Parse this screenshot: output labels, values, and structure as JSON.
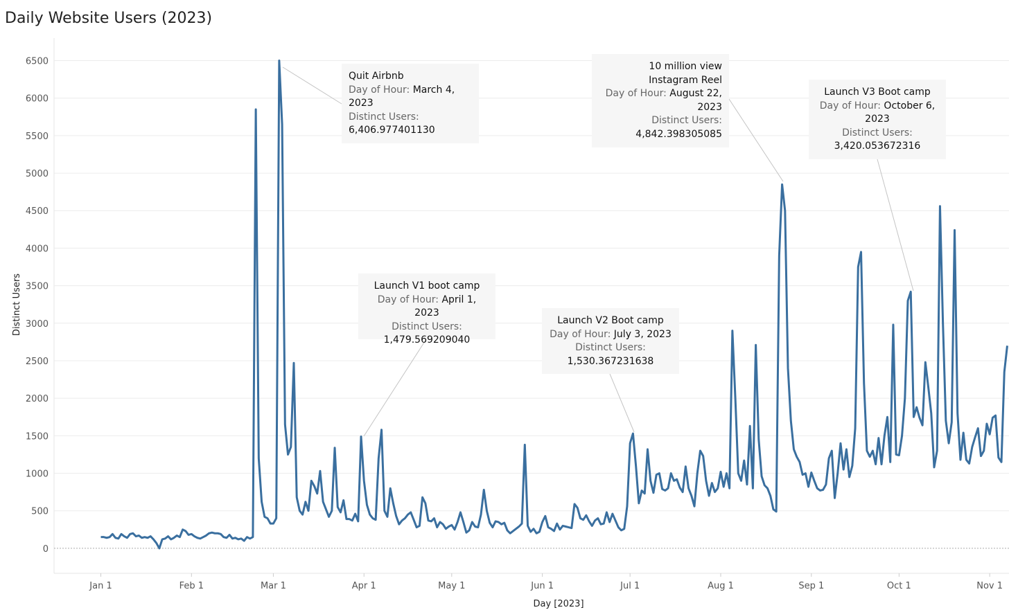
{
  "chart_data": {
    "type": "line",
    "title": "Daily Website Users (2023)",
    "x_label": "Day [2023]",
    "y_label": "Distinct Users",
    "xlim": [
      -16,
      310.6
    ],
    "ylim": [
      -333,
      6800
    ],
    "xticks": [
      {
        "value": 0,
        "label": "Jan 1"
      },
      {
        "value": 31,
        "label": "Feb 1"
      },
      {
        "value": 59,
        "label": "Mar 1"
      },
      {
        "value": 90,
        "label": "Apr 1"
      },
      {
        "value": 120,
        "label": "May 1"
      },
      {
        "value": 151,
        "label": "Jun 1"
      },
      {
        "value": 181,
        "label": "Jul 1"
      },
      {
        "value": 212,
        "label": "Aug 1"
      },
      {
        "value": 243,
        "label": "Sep 1"
      },
      {
        "value": 273,
        "label": "Oct 1"
      },
      {
        "value": 304,
        "label": "Nov 1"
      }
    ],
    "yticks": [
      0,
      500,
      1000,
      1500,
      2000,
      2500,
      3000,
      3500,
      4000,
      4500,
      5000,
      5500,
      6000,
      6500
    ],
    "grid": true,
    "x": [
      0,
      1,
      2,
      3,
      4,
      5,
      6,
      7,
      8,
      9,
      10,
      11,
      12,
      13,
      14,
      15,
      16,
      17,
      18,
      19,
      20,
      21,
      22,
      23,
      24,
      25,
      26,
      27,
      28,
      29,
      30,
      31,
      32,
      33,
      34,
      35,
      36,
      37,
      38,
      39,
      40,
      41,
      42,
      43,
      44,
      45,
      46,
      47,
      48,
      49,
      50,
      51,
      52,
      53,
      54,
      55,
      56,
      57,
      58,
      59,
      60,
      61,
      62,
      63,
      64,
      65,
      66,
      67,
      68,
      69,
      70,
      71,
      72,
      73,
      74,
      75,
      76,
      77,
      78,
      79,
      80,
      81,
      82,
      83,
      84,
      85,
      86,
      87,
      88,
      89,
      90,
      91,
      92,
      93,
      94,
      95,
      96,
      97,
      98,
      99,
      100,
      101,
      102,
      103,
      104,
      105,
      106,
      107,
      108,
      109,
      110,
      111,
      112,
      113,
      114,
      115,
      116,
      117,
      118,
      119,
      120,
      121,
      122,
      123,
      124,
      125,
      126,
      127,
      128,
      129,
      130,
      131,
      132,
      133,
      134,
      135,
      136,
      137,
      138,
      139,
      140,
      141,
      142,
      143,
      144,
      145,
      146,
      147,
      148,
      149,
      150,
      151,
      152,
      153,
      154,
      155,
      156,
      157,
      158,
      159,
      160,
      161,
      162,
      163,
      164,
      165,
      166,
      167,
      168,
      169,
      170,
      171,
      172,
      173,
      174,
      175,
      176,
      177,
      178,
      179,
      180,
      181,
      182,
      183,
      184,
      185,
      186,
      187,
      188,
      189,
      190,
      191,
      192,
      193,
      194,
      195,
      196,
      197,
      198,
      199,
      200,
      201,
      202,
      203,
      204,
      205,
      206,
      207,
      208,
      209,
      210,
      211,
      212,
      213,
      214,
      215,
      216,
      217,
      218,
      219,
      220,
      221,
      222,
      223,
      224,
      225,
      226,
      227,
      228,
      229,
      230,
      231,
      232,
      233,
      234,
      235,
      236,
      237,
      238,
      239,
      240,
      241,
      242,
      243,
      244,
      245,
      246,
      247,
      248,
      249,
      250,
      251,
      252,
      253,
      254,
      255,
      256,
      257,
      258,
      259,
      260,
      261,
      262,
      263,
      264,
      265,
      266,
      267,
      268,
      269,
      270,
      271,
      272,
      273,
      274,
      275,
      276,
      277,
      278,
      279,
      280,
      281,
      282,
      283,
      284,
      285,
      286,
      287,
      288,
      289,
      290,
      291,
      292,
      293,
      294,
      295,
      296,
      297,
      298,
      299,
      300,
      301,
      302,
      303,
      304,
      305,
      306,
      307,
      308,
      309,
      310
    ],
    "series": [
      {
        "name": "Distinct Users",
        "color": "#3a6f9f",
        "values": [
          150,
          150,
          140,
          150,
          190,
          140,
          130,
          190,
          160,
          140,
          190,
          200,
          160,
          170,
          140,
          150,
          140,
          160,
          120,
          70,
          0,
          120,
          130,
          160,
          120,
          140,
          170,
          150,
          250,
          230,
          180,
          190,
          160,
          140,
          130,
          150,
          170,
          200,
          210,
          200,
          200,
          190,
          150,
          140,
          180,
          130,
          140,
          120,
          130,
          100,
          150,
          130,
          150,
          5850,
          1200,
          620,
          420,
          400,
          330,
          330,
          400,
          6500,
          5650,
          1650,
          1250,
          1350,
          2470,
          680,
          500,
          450,
          620,
          500,
          900,
          830,
          730,
          1030,
          620,
          520,
          420,
          500,
          1340,
          550,
          480,
          640,
          390,
          390,
          370,
          460,
          360,
          1490,
          900,
          580,
          450,
          400,
          380,
          1200,
          1580,
          500,
          420,
          800,
          600,
          430,
          320,
          370,
          400,
          450,
          480,
          380,
          280,
          300,
          680,
          600,
          370,
          360,
          400,
          280,
          350,
          320,
          260,
          290,
          310,
          250,
          350,
          480,
          350,
          210,
          240,
          350,
          290,
          280,
          450,
          780,
          500,
          340,
          280,
          360,
          350,
          320,
          340,
          240,
          200,
          230,
          260,
          290,
          330,
          1380,
          300,
          220,
          260,
          200,
          220,
          350,
          430,
          280,
          260,
          230,
          330,
          250,
          300,
          290,
          280,
          270,
          590,
          540,
          400,
          380,
          440,
          360,
          300,
          370,
          400,
          320,
          330,
          480,
          350,
          460,
          370,
          280,
          240,
          260,
          560,
          1400,
          1530,
          1100,
          600,
          770,
          730,
          1320,
          900,
          740,
          980,
          1000,
          790,
          770,
          800,
          1000,
          900,
          920,
          810,
          750,
          1090,
          800,
          700,
          560,
          1000,
          1300,
          1230,
          900,
          700,
          870,
          750,
          800,
          1020,
          820,
          1000,
          800,
          2900,
          2000,
          1000,
          900,
          1170,
          850,
          1630,
          800,
          2710,
          1450,
          960,
          840,
          800,
          700,
          520,
          490,
          3900,
          4850,
          4500,
          2400,
          1700,
          1320,
          1220,
          1150,
          980,
          1000,
          820,
          1010,
          900,
          800,
          770,
          780,
          850,
          1200,
          1300,
          670,
          1000,
          1400,
          1050,
          1320,
          950,
          1100,
          1600,
          3750,
          3950,
          2200,
          1300,
          1220,
          1300,
          1120,
          1470,
          1120,
          1500,
          1750,
          1150,
          2980,
          1250,
          1240,
          1500,
          2000,
          3300,
          3420,
          1750,
          1880,
          1740,
          1640,
          2480,
          2150,
          1800,
          1080,
          1300,
          4560,
          3000,
          1700,
          1400,
          1680,
          4240,
          1800,
          1180,
          1540,
          1180,
          1130,
          1350,
          1480,
          1600,
          1230,
          1300,
          1660,
          1520,
          1740,
          1770,
          1210,
          1150,
          2350,
          2700
        ]
      }
    ],
    "annotations": [
      {
        "title": "Quit Airbnb",
        "date_label": "Day of Hour:",
        "date": "March 4, 2023",
        "value_label": "Distinct Users:",
        "value": "6,406.977401130"
      },
      {
        "title": "Launch V1 boot camp",
        "date_label": "Day of Hour:",
        "date": "April 1, 2023",
        "value_label": "Distinct Users:",
        "value": "1,479.569209040"
      },
      {
        "title": "Launch V2 Boot camp",
        "date_label": "Day of Hour:",
        "date": "July 3, 2023",
        "value_label": "Distinct Users:",
        "value": "1,530.367231638"
      },
      {
        "title": "10 million view Instagram Reel",
        "date_label": "Day of Hour:",
        "date": "August 22, 2023",
        "value_label": "Distinct Users:",
        "value": "4,842.398305085"
      },
      {
        "title": "Launch V3 Boot camp",
        "date_label": "Day of Hour:",
        "date": "October 6, 2023",
        "value_label": "Distinct Users:",
        "value": "3,420.053672316"
      }
    ]
  }
}
